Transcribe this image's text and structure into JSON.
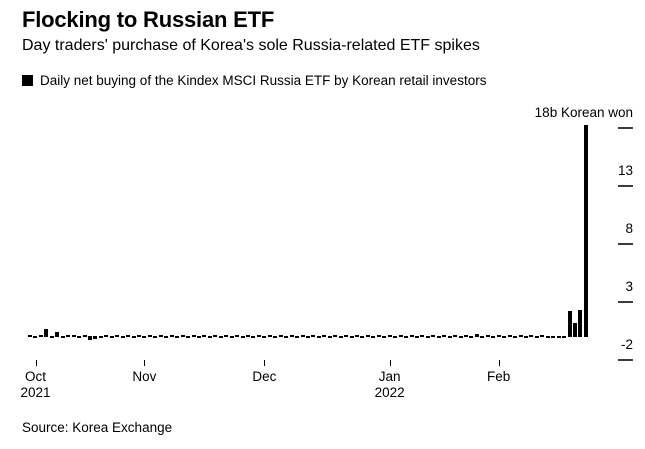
{
  "header": {
    "title": "Flocking to Russian ETF",
    "subtitle": "Day traders' purchase of Korea's sole Russia-related ETF spikes",
    "legend": {
      "swatch_color": "#000000",
      "label": "Daily net buying of the Kindex MSCI Russia ETF by Korean retail investors"
    }
  },
  "chart_data": {
    "type": "bar",
    "title": "Flocking to Russian ETF",
    "subtitle": "Day traders' purchase of Korea's sole Russia-related ETF spikes",
    "series_name": "Daily net buying of the Kindex MSCI Russia ETF by Korean retail investors",
    "ylabel": "b Korean won",
    "unit_label": "18b Korean won",
    "ylim": [
      -2,
      19
    ],
    "grid": false,
    "legend_position": "top-left",
    "bar_color": "#000000",
    "values": [
      0.05,
      -0.05,
      0.05,
      0.7,
      -0.1,
      0.45,
      -0.05,
      0.05,
      0.2,
      -0.05,
      0.05,
      -0.35,
      -0.3,
      -0.15,
      0.05,
      -0.05,
      0.05,
      -0.05,
      0.05,
      -0.05,
      0.05,
      -0.05,
      0.05,
      -0.05,
      0.05,
      -0.05,
      0.05,
      -0.05,
      0.05,
      -0.05,
      0.05,
      -0.05,
      0.05,
      -0.05,
      0.05,
      -0.05,
      0.05,
      -0.05,
      0.05,
      -0.05,
      0.05,
      -0.05,
      0.05,
      -0.05,
      0.05,
      -0.05,
      0.05,
      -0.05,
      0.05,
      -0.05,
      0.05,
      -0.05,
      0.05,
      -0.05,
      0.05,
      -0.05,
      0.05,
      -0.05,
      0.05,
      -0.05,
      0.05,
      -0.05,
      0.05,
      -0.05,
      0.05,
      -0.05,
      0.05,
      -0.05,
      0.05,
      -0.1,
      0.05,
      -0.05,
      0.05,
      -0.05,
      0.2,
      -0.05,
      0.15,
      -0.05,
      0.05,
      -0.1,
      0.05,
      -0.05,
      0.3,
      -0.1,
      0.05,
      -0.05,
      0.05,
      -0.05,
      0.05,
      -0.05,
      0.05,
      -0.1,
      0.05,
      -0.05,
      0.15,
      -0.1,
      -0.1,
      -0.15,
      -0.1,
      2.2,
      1.2,
      2.3,
      18.3
    ],
    "y_ticks": [
      {
        "value": 18,
        "label": "18b Korean won"
      },
      {
        "value": 13,
        "label": "13"
      },
      {
        "value": 8,
        "label": "8"
      },
      {
        "value": 3,
        "label": "3"
      },
      {
        "value": -2,
        "label": "-2"
      }
    ],
    "x_ticks": [
      {
        "label": "Oct",
        "year": "2021",
        "day_index": 1
      },
      {
        "label": "Nov",
        "day_index": 21
      },
      {
        "label": "Dec",
        "day_index": 43
      },
      {
        "label": "Jan",
        "year": "2022",
        "day_index": 66
      },
      {
        "label": "Feb",
        "day_index": 86
      }
    ]
  },
  "footer": {
    "source": "Source: Korea Exchange"
  }
}
